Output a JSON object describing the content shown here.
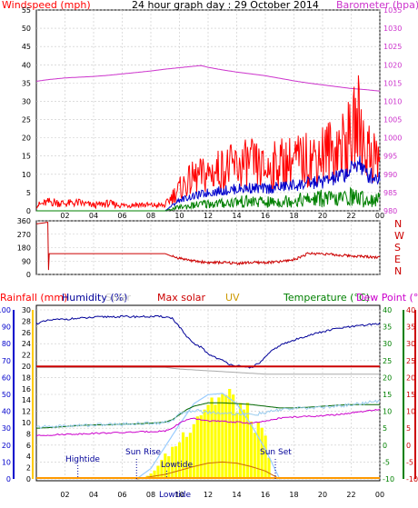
{
  "title": "24 hour graph day : 29 October 2014",
  "colors": {
    "wind": "#ff0000",
    "windAvg": "#0000cc",
    "windLow": "#008000",
    "baro": "#cc33cc",
    "dir": "#cc0000",
    "humidity": "#000099",
    "solarmax": "#cc0000",
    "uv": "#cc9900",
    "temp": "#006600",
    "dew": "#cc00cc",
    "rain": "#ff0000",
    "grid": "#c8c8c8",
    "sun": "#ffff00",
    "tide": "#000099"
  },
  "x_ticks": [
    "02",
    "04",
    "06",
    "08",
    "10",
    "12",
    "14",
    "16",
    "18",
    "20",
    "22",
    "00"
  ],
  "chart_data": [
    {
      "type": "line",
      "left_label": "Windspeed (mph)",
      "right_label": "Barometer (hpa)",
      "x_label": "hour",
      "x_range": [
        0,
        24
      ],
      "y_left_range": [
        0,
        55
      ],
      "y_left_ticks": [
        "0",
        "5",
        "10",
        "15",
        "20",
        "25",
        "30",
        "35",
        "40",
        "45",
        "50",
        "55"
      ],
      "y_right_range": [
        980,
        1035
      ],
      "y_right_ticks": [
        "980",
        "985",
        "990",
        "995",
        "1000",
        "1005",
        "1010",
        "1015",
        "1020",
        "1025",
        "1030",
        "1035"
      ],
      "series": [
        {
          "name": "Barometer",
          "axis": "right",
          "x": [
            0,
            1,
            2,
            3,
            4,
            5,
            6,
            7,
            8,
            9,
            10,
            11,
            11.5,
            12,
            13,
            14,
            15,
            16,
            17,
            18,
            19,
            20,
            21,
            22,
            23,
            24
          ],
          "y": [
            1015.5,
            1016,
            1016.4,
            1016.6,
            1016.8,
            1017.1,
            1017.5,
            1017.9,
            1018.3,
            1018.8,
            1019.2,
            1019.6,
            1019.8,
            1019.3,
            1018.6,
            1018,
            1017.5,
            1017,
            1016.3,
            1015.6,
            1015,
            1014.5,
            1014,
            1013.5,
            1013.2,
            1012.8
          ]
        },
        {
          "name": "Wind gust",
          "axis": "left",
          "x": [
            0,
            1,
            2,
            3,
            4,
            5,
            6,
            7,
            8,
            9,
            9.5,
            10,
            11,
            12,
            13,
            14,
            15,
            16,
            17,
            18,
            19,
            20,
            21,
            22,
            22.5,
            23,
            24
          ],
          "y": [
            1.5,
            2.5,
            2,
            2.2,
            1.5,
            2,
            1.5,
            1.8,
            1.5,
            1.5,
            4,
            6,
            9,
            10,
            11.5,
            12,
            13,
            11,
            13,
            13.5,
            14,
            16,
            17,
            20,
            25,
            17,
            14
          ]
        },
        {
          "name": "Wind average",
          "axis": "left",
          "x": [
            0,
            9,
            9.5,
            10,
            11,
            12,
            13,
            14,
            15,
            16,
            17,
            18,
            19,
            20,
            21,
            22,
            22.5,
            23,
            24
          ],
          "y": [
            0,
            0,
            1.5,
            3,
            4,
            5,
            5.5,
            6,
            6.3,
            6,
            6.5,
            7,
            7.5,
            8,
            9,
            11,
            14,
            10,
            9
          ]
        },
        {
          "name": "Wind low",
          "axis": "left",
          "x": [
            0,
            9,
            9.5,
            10,
            11,
            12,
            13,
            14,
            15,
            16,
            17,
            18,
            19,
            20,
            21,
            22,
            23,
            24
          ],
          "y": [
            0,
            0,
            0.5,
            1,
            1.5,
            2,
            2,
            2.5,
            2.5,
            2.3,
            2.5,
            3,
            3,
            3.5,
            3,
            4,
            3,
            3
          ]
        }
      ]
    },
    {
      "type": "line",
      "left_label": "",
      "right_label": "N W S E N",
      "x_range": [
        0,
        24
      ],
      "y_left_range": [
        0,
        360
      ],
      "y_left_ticks": [
        "0",
        "90",
        "180",
        "270",
        "360"
      ],
      "series": [
        {
          "name": "Wind direction",
          "axis": "left",
          "x": [
            0,
            0.8,
            0.85,
            0.9,
            1,
            2,
            3,
            4,
            5,
            6,
            7,
            8,
            9,
            9.5,
            10,
            11,
            12,
            13,
            14,
            15,
            16,
            17,
            18,
            19,
            20,
            21,
            22,
            23,
            24
          ],
          "y": [
            340,
            350,
            30,
            140,
            140,
            140,
            140,
            140,
            140,
            140,
            140,
            140,
            140,
            120,
            110,
            90,
            80,
            80,
            75,
            80,
            80,
            85,
            100,
            140,
            140,
            130,
            125,
            120,
            115
          ]
        }
      ]
    },
    {
      "type": "line",
      "labels": [
        "Rainfall (mm)",
        "Humidity (%)",
        "Solar",
        "Max solar",
        "UV",
        "Temperature (°C)",
        "Dew Point (°C)"
      ],
      "x_range": [
        0,
        24
      ],
      "y_humidity_range": [
        0,
        100
      ],
      "y_humidity_ticks": [
        "0",
        "10",
        "20",
        "30",
        "40",
        "50",
        "60",
        "70",
        "80",
        "90",
        "100"
      ],
      "y_rain_range": [
        0,
        30
      ],
      "y_rain_ticks": [
        "0",
        "2",
        "4",
        "6",
        "8",
        "10",
        "12",
        "14",
        "16",
        "18",
        "20",
        "22",
        "24",
        "26",
        "28",
        "30"
      ],
      "y_temp_range": [
        -10,
        40
      ],
      "y_temp_ticks": [
        "-10",
        "-5",
        "0",
        "5",
        "10",
        "15",
        "20",
        "25",
        "30",
        "35",
        "40"
      ],
      "series": [
        {
          "name": "Humidity",
          "axis": "humidity",
          "x": [
            0,
            1,
            2,
            3,
            4,
            5,
            6,
            7,
            8,
            9,
            9.5,
            10,
            10.5,
            11,
            11.5,
            12,
            12.5,
            13,
            13.5,
            14,
            14.5,
            15,
            15.5,
            16,
            16.5,
            17,
            18,
            19,
            20,
            21,
            22,
            23,
            24
          ],
          "y": [
            92,
            94,
            94.5,
            95,
            95.5,
            96,
            96,
            96,
            96,
            96,
            95,
            90,
            84,
            80,
            78,
            74,
            72,
            70,
            68,
            67,
            66,
            66,
            68,
            72,
            76,
            79,
            82,
            85,
            87,
            89,
            90,
            91,
            92
          ]
        },
        {
          "name": "Temperature",
          "axis": "temp",
          "x": [
            0,
            1,
            2,
            3,
            4,
            5,
            6,
            7,
            8,
            9,
            9.5,
            10,
            10.5,
            11,
            11.5,
            12,
            13,
            14,
            15,
            16,
            17,
            18,
            19,
            20,
            21,
            22,
            23,
            24
          ],
          "y": [
            5,
            5.2,
            5.5,
            5.8,
            6,
            6,
            6.2,
            6.3,
            6.5,
            6.8,
            7.5,
            9,
            10.5,
            11.5,
            12,
            12.5,
            12.5,
            12.3,
            12,
            11.5,
            11,
            11,
            11.2,
            11.5,
            11.8,
            12,
            12,
            12
          ]
        },
        {
          "name": "Dew point",
          "axis": "temp",
          "x": [
            0,
            1,
            2,
            3,
            4,
            5,
            6,
            7,
            8,
            9,
            9.5,
            10,
            10.5,
            11,
            11.5,
            12,
            13,
            14,
            15,
            16,
            17,
            18,
            19,
            20,
            21,
            22,
            23,
            24
          ],
          "y": [
            2.8,
            3,
            3.2,
            3.3,
            3.5,
            3.6,
            3.7,
            3.9,
            4,
            4.2,
            5,
            6.5,
            7.5,
            7.8,
            7.5,
            7.2,
            7,
            6.8,
            6.5,
            7,
            8,
            8.3,
            8.5,
            8.7,
            9,
            9.5,
            10,
            10.5
          ]
        },
        {
          "name": "Max solar",
          "axis": "rain",
          "x": [
            7,
            8,
            9,
            10,
            11,
            12,
            13,
            14,
            15,
            16,
            17
          ],
          "y": [
            0,
            0.8,
            2.5,
            4.2,
            5.8,
            6.5,
            6.6,
            5.8,
            4.2,
            2.3,
            0
          ]
        },
        {
          "name": "Solar",
          "axis": "rain",
          "x": [
            7.5,
            8,
            9,
            10,
            11,
            12,
            13,
            14,
            15,
            16,
            16.5
          ],
          "y": [
            0,
            1,
            4,
            7,
            11,
            14,
            15,
            14,
            11,
            7,
            0
          ]
        },
        {
          "name": "UV",
          "axis": "rain",
          "x": [
            7,
            9,
            10,
            11,
            12,
            13,
            14,
            15,
            16,
            17
          ],
          "y": [
            0,
            0.8,
            1.5,
            2.2,
            2.8,
            3,
            2.8,
            2.2,
            1.4,
            0
          ]
        },
        {
          "name": "Rainfall",
          "axis": "rain",
          "x": [
            0,
            24
          ],
          "y": [
            0,
            0
          ]
        },
        {
          "name": "Solar flat",
          "axis": "humidity",
          "x": [
            0,
            1,
            2,
            3,
            4,
            5,
            6,
            7,
            8,
            9,
            10,
            11,
            12,
            13,
            14,
            15,
            16,
            17,
            18,
            19,
            20,
            21,
            22,
            23,
            24
          ],
          "y": [
            66,
            66,
            66,
            66,
            66,
            66,
            66,
            66,
            66,
            66,
            65,
            64.5,
            64,
            63.5,
            63,
            62.5,
            62,
            62,
            62,
            62,
            62,
            62,
            62,
            62,
            62
          ]
        },
        {
          "name": "Max solar flat",
          "axis": "humidity",
          "x": [
            0,
            24
          ],
          "y": [
            66.5,
            66.5
          ]
        }
      ],
      "annotations": {
        "hightide": "Hightide",
        "lowtide_top": "Lowtide",
        "lowtide_bottom": "Lowtide",
        "sunrise": "Sun Rise",
        "sunset": "Sun Set"
      }
    }
  ]
}
